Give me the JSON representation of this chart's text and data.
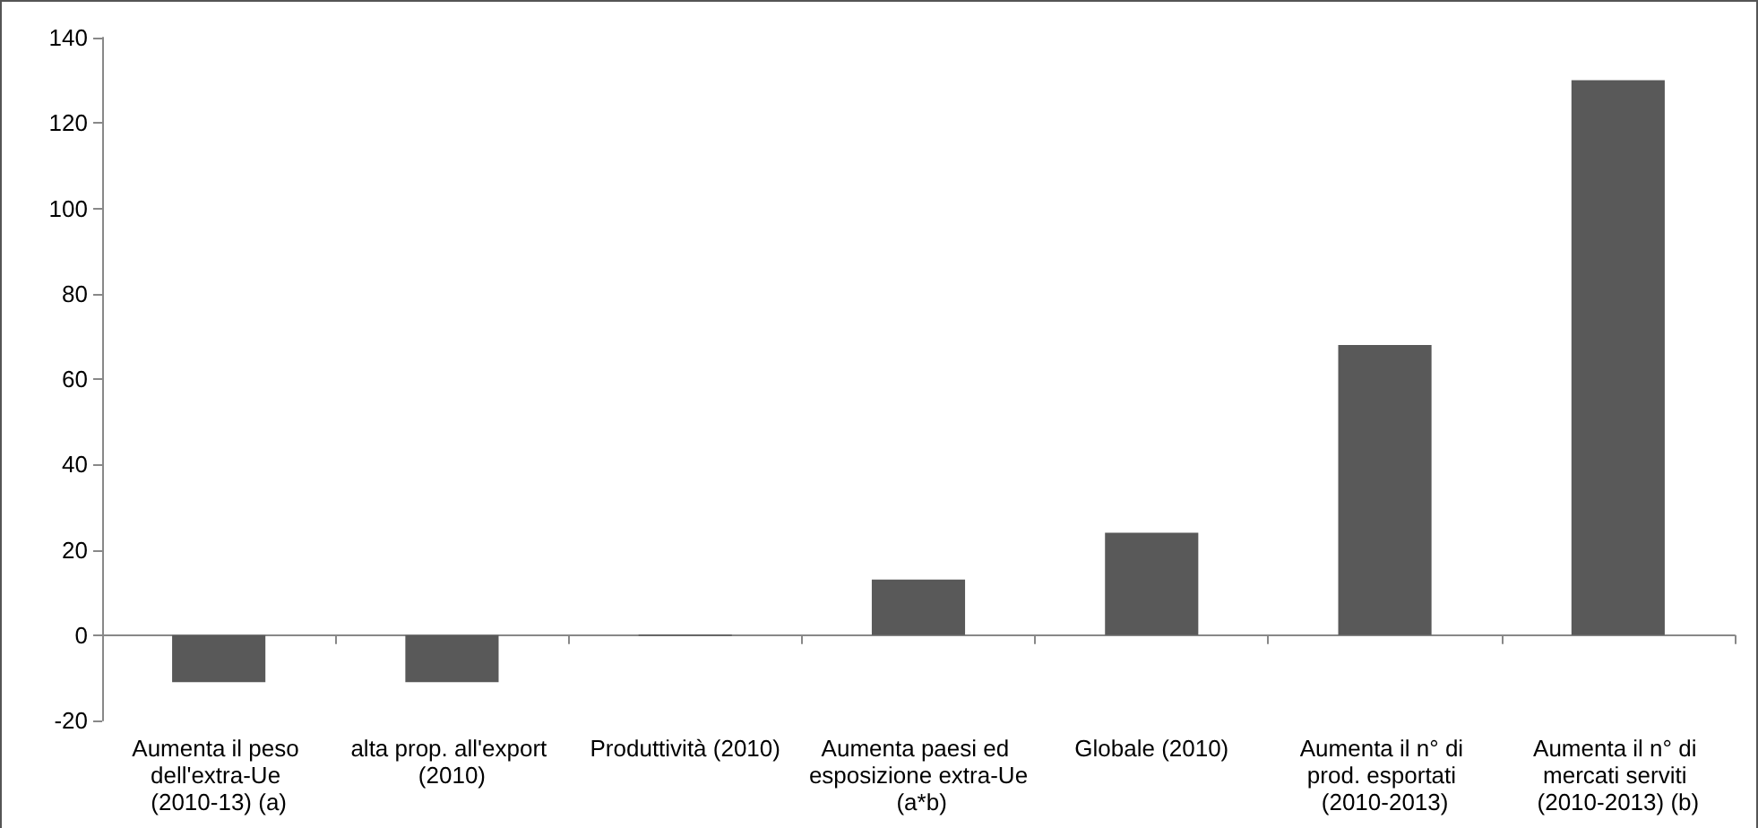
{
  "chart_data": {
    "type": "bar",
    "categories": [
      "Aumenta il peso dell'extra-Ue (2010-13) (a)",
      "alta prop. all'export (2010)",
      "Produttività (2010)",
      "Aumenta paesi ed esposizione extra-Ue (a*b)",
      "Globale (2010)",
      "Aumenta il n° di prod. esportati (2010-2013)",
      "Aumenta il n° di mercati serviti (2010-2013) (b)"
    ],
    "values": [
      -11,
      -11,
      0,
      13,
      24,
      68,
      130
    ],
    "color": "#595959",
    "ylim": [
      -20,
      140
    ],
    "yticks": [
      -20,
      0,
      20,
      40,
      60,
      80,
      100,
      120,
      140
    ]
  }
}
